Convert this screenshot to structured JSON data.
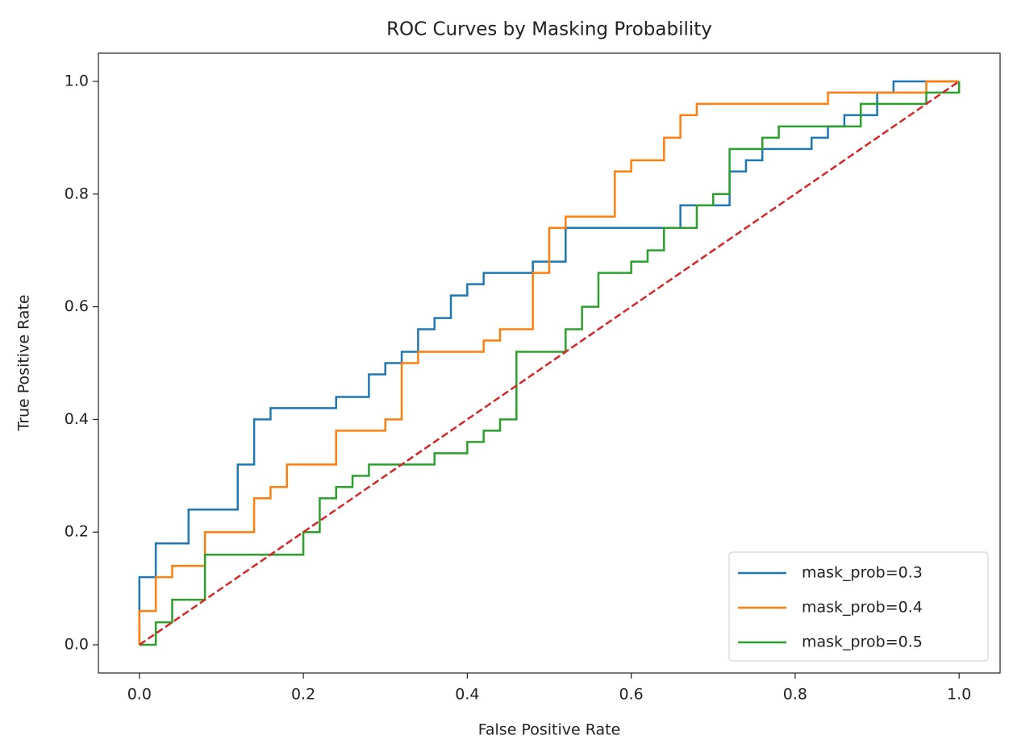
{
  "chart_data": {
    "type": "line",
    "title": "ROC Curves by Masking Probability",
    "xlabel": "False Positive Rate",
    "ylabel": "True Positive Rate",
    "xlim": [
      -0.05,
      1.05
    ],
    "ylim": [
      -0.05,
      1.05
    ],
    "xticks": [
      {
        "value": 0,
        "label": "0.0"
      },
      0.2,
      0.4,
      0.6,
      0.8,
      {
        "value": 1,
        "label": "1.0"
      }
    ],
    "yticks": [
      {
        "value": 0,
        "label": "0.0"
      },
      0.2,
      0.4,
      0.6,
      0.8,
      {
        "value": 1,
        "label": "1.0"
      }
    ],
    "grid": false,
    "legend": "lower right",
    "series": [
      {
        "name": "mask_prob=0.3",
        "color": "#1f77b4",
        "x": [
          0,
          0,
          0.02,
          0.02,
          0.06,
          0.06,
          0.12,
          0.12,
          0.14,
          0.14,
          0.16,
          0.16,
          0.24,
          0.24,
          0.28,
          0.28,
          0.3,
          0.3,
          0.32,
          0.32,
          0.34,
          0.34,
          0.36,
          0.36,
          0.38,
          0.38,
          0.4,
          0.4,
          0.42,
          0.42,
          0.48,
          0.48,
          0.52,
          0.52,
          0.66,
          0.66,
          0.72,
          0.72,
          0.74,
          0.74,
          0.76,
          0.76,
          0.82,
          0.82,
          0.84,
          0.84,
          0.86,
          0.86,
          0.9,
          0.9,
          0.92,
          0.92,
          1
        ],
        "values": [
          0,
          0.12,
          0.12,
          0.18,
          0.18,
          0.24,
          0.24,
          0.32,
          0.32,
          0.4,
          0.4,
          0.42,
          0.42,
          0.44,
          0.44,
          0.48,
          0.48,
          0.5,
          0.5,
          0.52,
          0.52,
          0.56,
          0.56,
          0.58,
          0.58,
          0.62,
          0.62,
          0.64,
          0.64,
          0.66,
          0.66,
          0.68,
          0.68,
          0.74,
          0.74,
          0.78,
          0.78,
          0.84,
          0.84,
          0.86,
          0.86,
          0.88,
          0.88,
          0.9,
          0.9,
          0.92,
          0.92,
          0.94,
          0.94,
          0.98,
          0.98,
          1,
          1
        ]
      },
      {
        "name": "mask_prob=0.4",
        "color": "#ff7f0e",
        "x": [
          0,
          0,
          0.02,
          0.02,
          0.04,
          0.04,
          0.08,
          0.08,
          0.14,
          0.14,
          0.16,
          0.16,
          0.18,
          0.18,
          0.24,
          0.24,
          0.3,
          0.3,
          0.32,
          0.32,
          0.34,
          0.34,
          0.42,
          0.42,
          0.44,
          0.44,
          0.48,
          0.48,
          0.5,
          0.5,
          0.52,
          0.52,
          0.58,
          0.58,
          0.6,
          0.6,
          0.64,
          0.64,
          0.66,
          0.66,
          0.68,
          0.68,
          0.84,
          0.84,
          0.96,
          0.96,
          1
        ],
        "values": [
          0,
          0.06,
          0.06,
          0.12,
          0.12,
          0.14,
          0.14,
          0.2,
          0.2,
          0.26,
          0.26,
          0.28,
          0.28,
          0.32,
          0.32,
          0.38,
          0.38,
          0.4,
          0.4,
          0.5,
          0.5,
          0.52,
          0.52,
          0.54,
          0.54,
          0.56,
          0.56,
          0.66,
          0.66,
          0.74,
          0.74,
          0.76,
          0.76,
          0.84,
          0.84,
          0.86,
          0.86,
          0.9,
          0.9,
          0.94,
          0.94,
          0.96,
          0.96,
          0.98,
          0.98,
          1,
          1
        ]
      },
      {
        "name": "mask_prob=0.5",
        "color": "#2ca02c",
        "x": [
          0,
          0.02,
          0.02,
          0.04,
          0.04,
          0.08,
          0.08,
          0.2,
          0.2,
          0.22,
          0.22,
          0.24,
          0.24,
          0.26,
          0.26,
          0.28,
          0.28,
          0.36,
          0.36,
          0.4,
          0.4,
          0.42,
          0.42,
          0.44,
          0.44,
          0.46,
          0.46,
          0.52,
          0.52,
          0.54,
          0.54,
          0.56,
          0.56,
          0.6,
          0.6,
          0.62,
          0.62,
          0.64,
          0.64,
          0.68,
          0.68,
          0.7,
          0.7,
          0.72,
          0.72,
          0.76,
          0.76,
          0.78,
          0.78,
          0.88,
          0.88,
          0.96,
          0.96,
          1,
          1
        ],
        "values": [
          0,
          0,
          0.04,
          0.04,
          0.08,
          0.08,
          0.16,
          0.16,
          0.2,
          0.2,
          0.26,
          0.26,
          0.28,
          0.28,
          0.3,
          0.3,
          0.32,
          0.32,
          0.34,
          0.34,
          0.36,
          0.36,
          0.38,
          0.38,
          0.4,
          0.4,
          0.52,
          0.52,
          0.56,
          0.56,
          0.6,
          0.6,
          0.66,
          0.66,
          0.68,
          0.68,
          0.7,
          0.7,
          0.74,
          0.74,
          0.78,
          0.78,
          0.8,
          0.8,
          0.88,
          0.88,
          0.9,
          0.9,
          0.92,
          0.92,
          0.96,
          0.96,
          0.98,
          0.98,
          1
        ]
      }
    ],
    "reference_line": {
      "x": [
        0,
        1
      ],
      "values": [
        0,
        1
      ],
      "color": "#d62728",
      "dashed": true
    }
  }
}
